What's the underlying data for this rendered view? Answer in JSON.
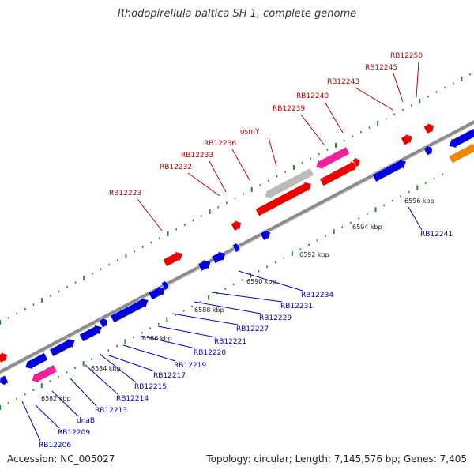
{
  "title": "Rhodopirellula baltica SH 1, complete genome",
  "footer": {
    "accession": "Accession: NC_005027",
    "summary": "Topology: circular; Length: 7,145,576 bp; Genes: 7,405"
  },
  "colors": {
    "backbone": "#8c8c8c",
    "forward_label": "#cc0000",
    "reverse_label": "#0000cc",
    "gene_red": "#ee0000",
    "gene_blue": "#0000dd",
    "gene_pink": "#ee2299",
    "gene_gray": "#bbbbbb",
    "gene_orange": "#ee8800",
    "tick_green": "#2a8a2a"
  },
  "scale_ticks": [
    "6582 kbp",
    "6584 kbp",
    "6586 kbp",
    "6588 kbp",
    "6590 kbp",
    "6592 kbp",
    "6594 kbp",
    "6596 kbp"
  ],
  "forward_labels": [
    "RB12223",
    "RB12232",
    "RB12233",
    "RB12236",
    "osmY",
    "RB12239",
    "RB12240",
    "RB12243",
    "RB12245",
    "RB12250"
  ],
  "reverse_labels": [
    "RB12206",
    "RB12209",
    "dnaB",
    "RB12213",
    "RB12214",
    "RB12215",
    "RB12217",
    "RB12219",
    "RB12220",
    "RB12221",
    "RB12227",
    "RB12229",
    "RB12231",
    "RB12234",
    "RB12241"
  ]
}
